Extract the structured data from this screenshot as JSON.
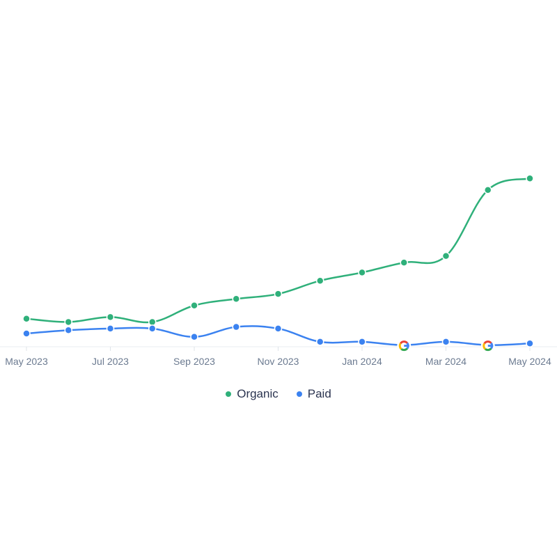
{
  "chart_data": {
    "type": "line",
    "x": [
      "2023-05",
      "2023-06",
      "2023-07",
      "2023-08",
      "2023-09",
      "2023-10",
      "2023-11",
      "2023-12",
      "2024-01",
      "2024-02",
      "2024-03",
      "2024-04",
      "2024-05"
    ],
    "x_tick_labels": [
      "May 2023",
      "Jul 2023",
      "Sep 2023",
      "Nov 2023",
      "Jan 2024",
      "Mar 2024",
      "May 2024"
    ],
    "series": [
      {
        "name": "Organic",
        "color": "#2fb07a",
        "values": [
          17,
          15,
          18,
          15,
          25,
          29,
          32,
          40,
          45,
          51,
          55,
          95,
          102
        ]
      },
      {
        "name": "Paid",
        "color": "#3b82f0",
        "values": [
          8,
          10,
          11,
          11,
          6,
          12,
          11,
          3,
          3,
          1,
          3,
          1,
          2
        ]
      }
    ],
    "annotations": [
      {
        "x": "2024-02",
        "series": "Paid",
        "icon": "google-icon"
      },
      {
        "x": "2024-04",
        "series": "Paid",
        "icon": "google-icon"
      }
    ],
    "ylim": [
      0,
      130
    ],
    "legend_position": "bottom-center",
    "grid": false
  }
}
